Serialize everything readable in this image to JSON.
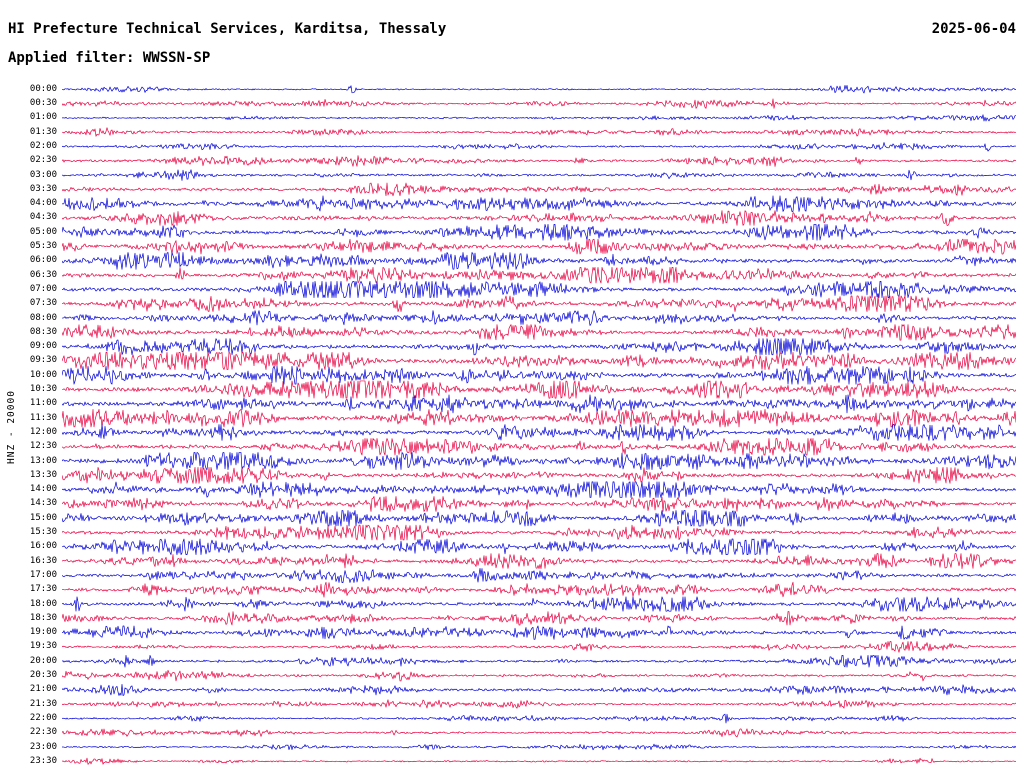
{
  "header": {
    "title": "HI Prefecture Technical Services, Karditsa, Thessaly",
    "date": "2025-06-04",
    "filter_label": "Applied filter: WWSSN-SP"
  },
  "axis": {
    "left_label": "HNZ - 20000"
  },
  "colors": {
    "blue": "#0000d8",
    "red": "#e80040",
    "background": "#ffffff",
    "text": "#000000"
  },
  "chart_data": {
    "type": "line",
    "title": "HI Prefecture Technical Services, Karditsa, Thessaly",
    "date": "2025-06-04",
    "filter": "WWSSN-SP",
    "channel": "HNZ",
    "gain": "20000",
    "row_interval_minutes": 30,
    "rows": [
      {
        "t": "00:00",
        "c": "blue",
        "a": 0.12
      },
      {
        "t": "00:30",
        "c": "red",
        "a": 0.22
      },
      {
        "t": "01:00",
        "c": "blue",
        "a": 0.14
      },
      {
        "t": "01:30",
        "c": "red",
        "a": 0.28
      },
      {
        "t": "02:00",
        "c": "blue",
        "a": 0.2
      },
      {
        "t": "02:30",
        "c": "red",
        "a": 0.34
      },
      {
        "t": "03:00",
        "c": "blue",
        "a": 0.3
      },
      {
        "t": "03:30",
        "c": "red",
        "a": 0.42
      },
      {
        "t": "04:00",
        "c": "blue",
        "a": 0.6
      },
      {
        "t": "04:30",
        "c": "red",
        "a": 0.55
      },
      {
        "t": "05:00",
        "c": "blue",
        "a": 0.62
      },
      {
        "t": "05:30",
        "c": "red",
        "a": 0.55
      },
      {
        "t": "06:00",
        "c": "blue",
        "a": 0.68
      },
      {
        "t": "06:30",
        "c": "red",
        "a": 0.6
      },
      {
        "t": "07:00",
        "c": "blue",
        "a": 0.64
      },
      {
        "t": "07:30",
        "c": "red",
        "a": 0.6
      },
      {
        "t": "08:00",
        "c": "blue",
        "a": 0.56
      },
      {
        "t": "08:30",
        "c": "red",
        "a": 0.6
      },
      {
        "t": "09:00",
        "c": "blue",
        "a": 0.64
      },
      {
        "t": "09:30",
        "c": "red",
        "a": 0.7
      },
      {
        "t": "10:00",
        "c": "blue",
        "a": 0.74
      },
      {
        "t": "10:30",
        "c": "red",
        "a": 0.7
      },
      {
        "t": "11:00",
        "c": "blue",
        "a": 0.75
      },
      {
        "t": "11:30",
        "c": "red",
        "a": 0.72
      },
      {
        "t": "12:00",
        "c": "blue",
        "a": 0.62
      },
      {
        "t": "12:30",
        "c": "red",
        "a": 0.66
      },
      {
        "t": "13:00",
        "c": "blue",
        "a": 0.7
      },
      {
        "t": "13:30",
        "c": "red",
        "a": 0.62
      },
      {
        "t": "14:00",
        "c": "blue",
        "a": 0.6
      },
      {
        "t": "14:30",
        "c": "red",
        "a": 0.56
      },
      {
        "t": "15:00",
        "c": "blue",
        "a": 0.6
      },
      {
        "t": "15:30",
        "c": "red",
        "a": 0.55
      },
      {
        "t": "16:00",
        "c": "blue",
        "a": 0.6
      },
      {
        "t": "16:30",
        "c": "red",
        "a": 0.56
      },
      {
        "t": "17:00",
        "c": "blue",
        "a": 0.52
      },
      {
        "t": "17:30",
        "c": "red",
        "a": 0.56
      },
      {
        "t": "18:00",
        "c": "blue",
        "a": 0.52
      },
      {
        "t": "18:30",
        "c": "red",
        "a": 0.46
      },
      {
        "t": "19:00",
        "c": "blue",
        "a": 0.46
      },
      {
        "t": "19:30",
        "c": "red",
        "a": 0.3
      },
      {
        "t": "20:00",
        "c": "blue",
        "a": 0.36
      },
      {
        "t": "20:30",
        "c": "red",
        "a": 0.3
      },
      {
        "t": "21:00",
        "c": "blue",
        "a": 0.36
      },
      {
        "t": "21:30",
        "c": "red",
        "a": 0.26
      },
      {
        "t": "22:00",
        "c": "blue",
        "a": 0.2
      },
      {
        "t": "22:30",
        "c": "red",
        "a": 0.24
      },
      {
        "t": "23:00",
        "c": "blue",
        "a": 0.14
      },
      {
        "t": "23:30",
        "c": "red",
        "a": 0.12
      }
    ]
  }
}
